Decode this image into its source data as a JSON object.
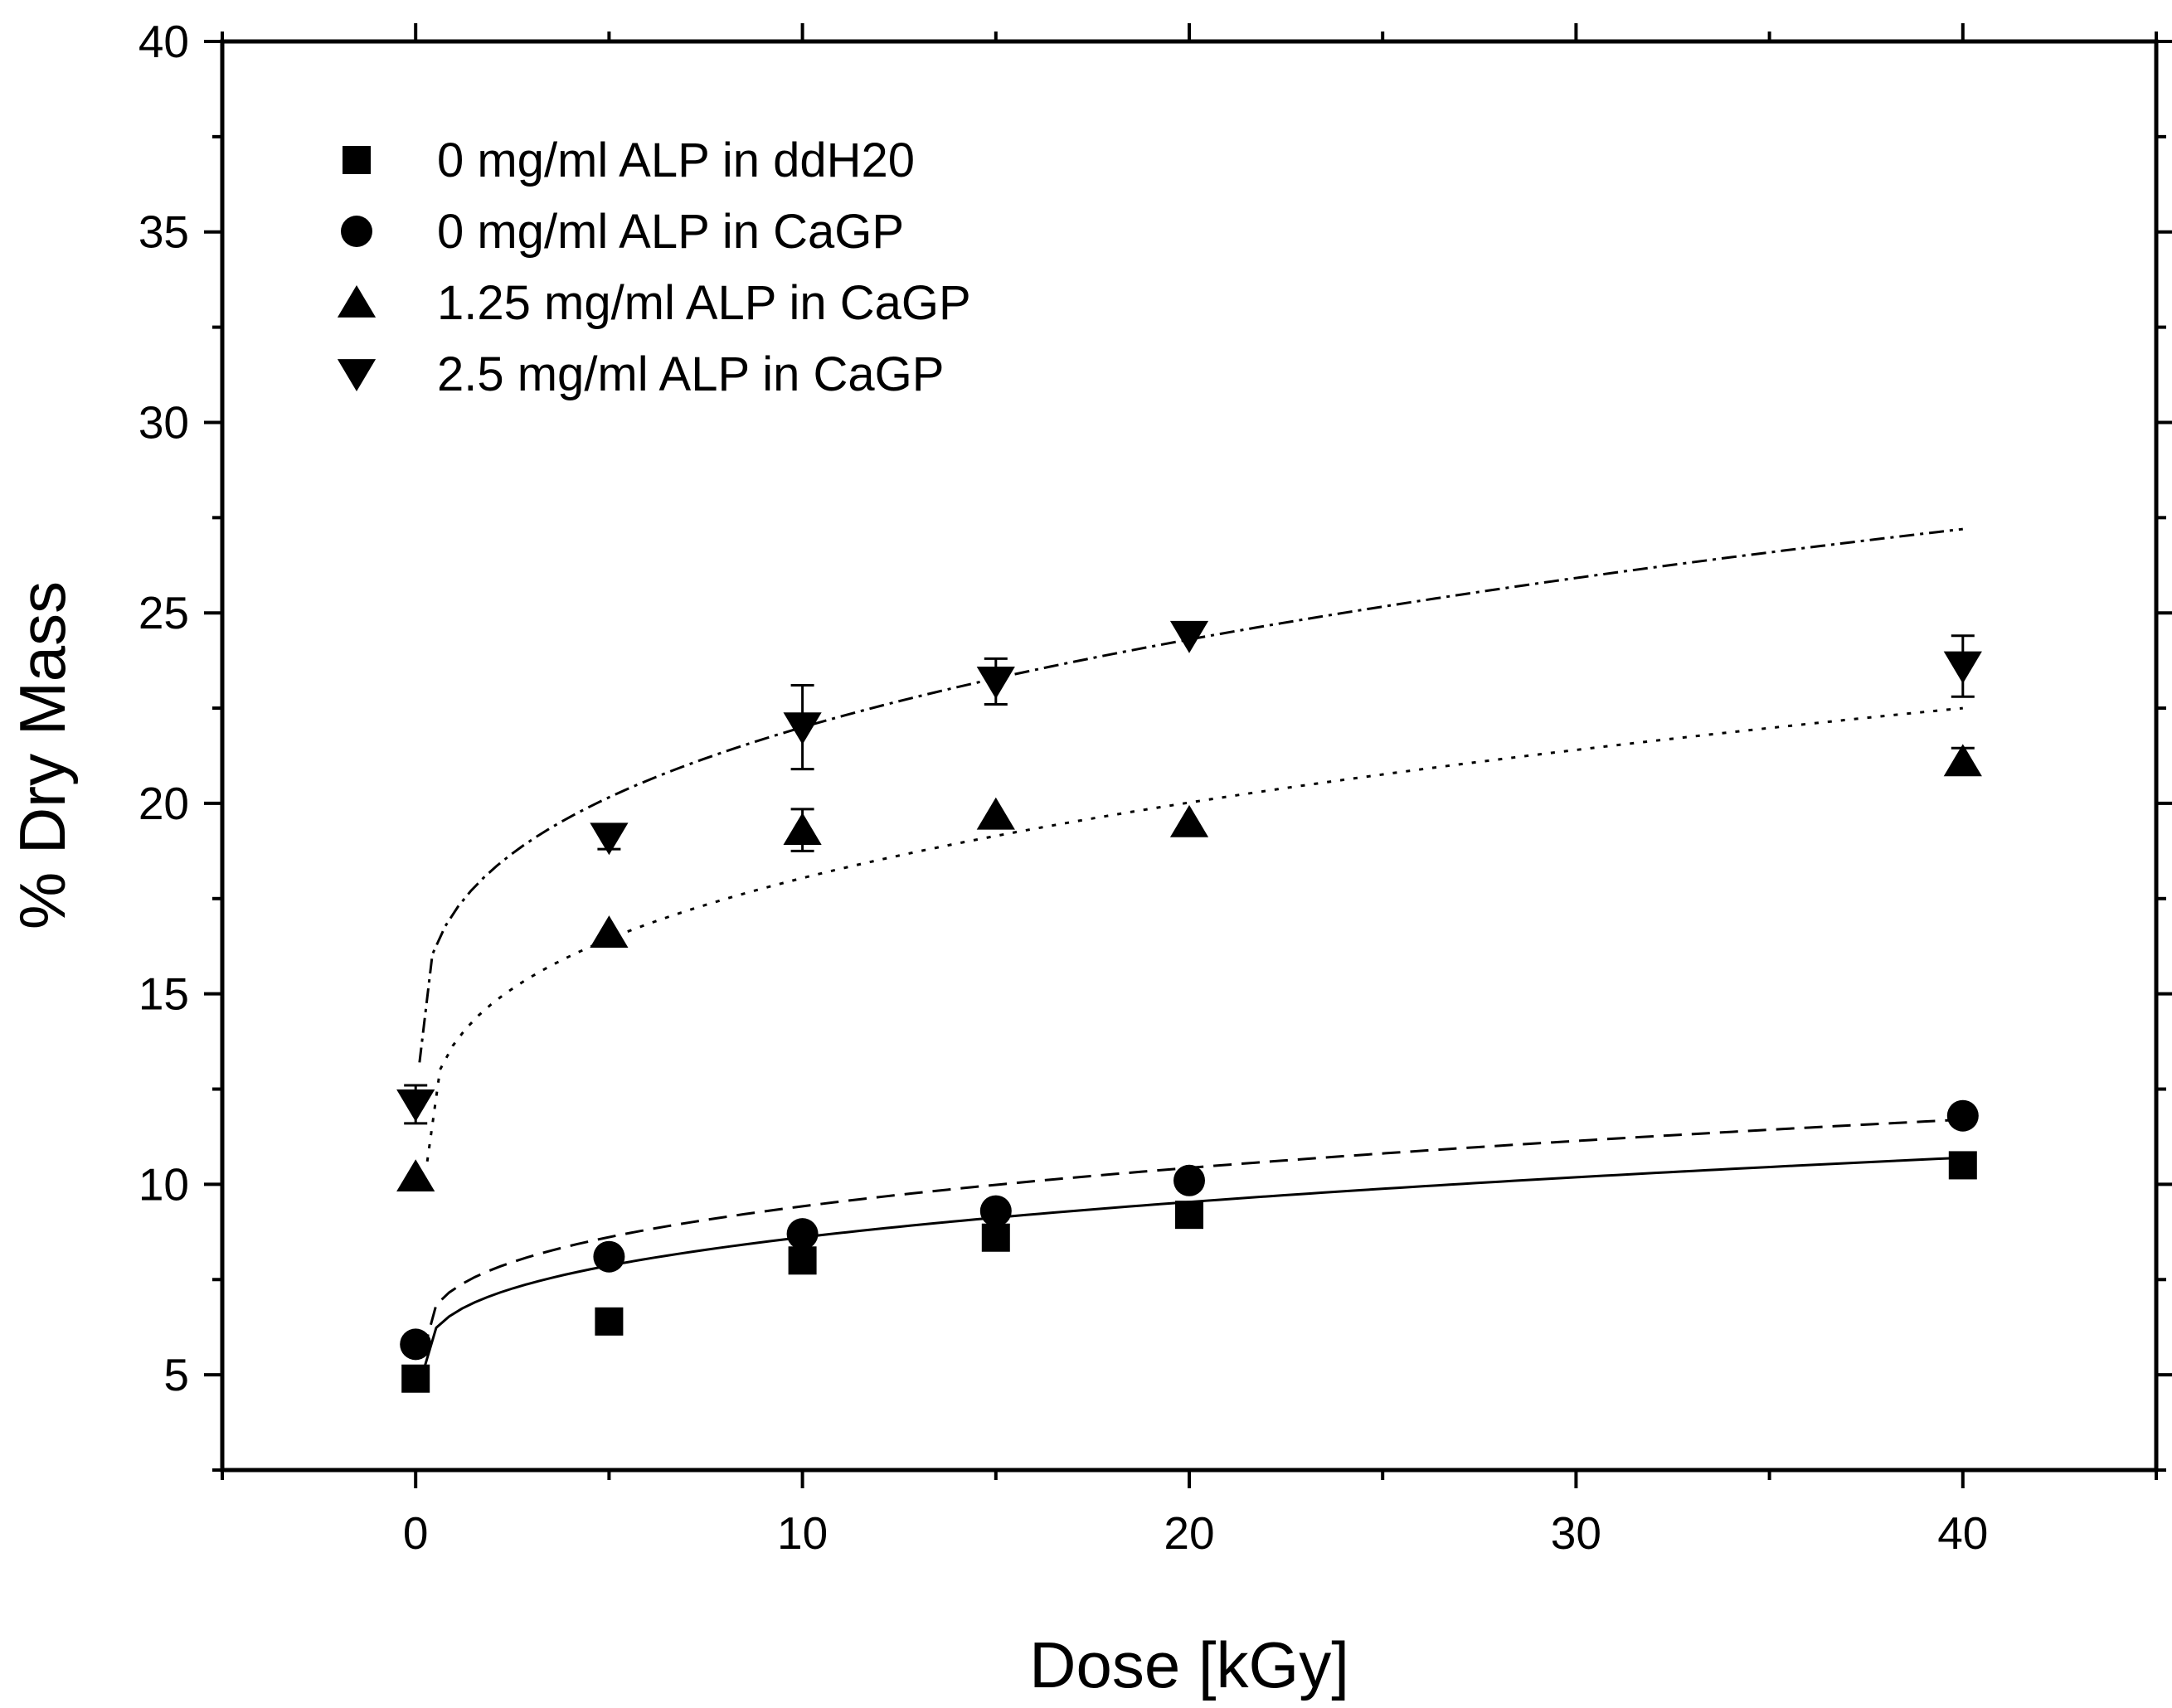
{
  "chart_data": {
    "type": "scatter",
    "title": "",
    "xlabel": "Dose [kGy]",
    "ylabel": "% Dry Mass",
    "xlim": [
      -5,
      45
    ],
    "ylim": [
      2.5,
      40
    ],
    "xticks": [
      0,
      10,
      20,
      30,
      40
    ],
    "yticks": [
      5,
      10,
      15,
      20,
      25,
      30,
      35,
      40
    ],
    "x_minor_step": 5,
    "y_minor_step": 2.5,
    "legend_position": "top-left",
    "grid": false,
    "series": [
      {
        "name": "0 mg/ml ALP in ddH20",
        "marker": "square",
        "x": [
          0,
          5,
          10,
          15,
          20,
          40
        ],
        "y": [
          4.9,
          6.4,
          8.0,
          8.6,
          9.2,
          10.5
        ],
        "err": [
          0,
          0,
          0,
          0,
          0,
          0
        ],
        "fit": {
          "style": "solid",
          "x_start": 0.2,
          "x_end": 40,
          "y_start": 5.1,
          "y_end": 10.7,
          "k": 3
        }
      },
      {
        "name": "0 mg/ml ALP in CaGP",
        "marker": "circle",
        "x": [
          0,
          5,
          10,
          15,
          20,
          40
        ],
        "y": [
          5.8,
          8.1,
          8.7,
          9.3,
          10.1,
          11.8
        ],
        "err": [
          0,
          0,
          0,
          0,
          0,
          0
        ],
        "fit": {
          "style": "dashed",
          "x_start": 0.2,
          "x_end": 40,
          "y_start": 5.6,
          "y_end": 11.7,
          "k": 3
        }
      },
      {
        "name": "1.25 mg/ml ALP in CaGP",
        "marker": "triangle-up",
        "x": [
          0,
          5,
          10,
          15,
          20,
          40
        ],
        "y": [
          10.2,
          16.6,
          19.3,
          19.7,
          19.5,
          21.1
        ],
        "err": [
          0,
          0,
          0.55,
          0,
          0,
          0.35
        ],
        "fit": {
          "style": "dotted",
          "x_start": 0.3,
          "x_end": 40,
          "y_start": 10.6,
          "y_end": 22.5,
          "k": 3
        }
      },
      {
        "name": "2.5 mg/ml ALP in CaGP",
        "marker": "triangle-down",
        "x": [
          0,
          5,
          10,
          15,
          20,
          40
        ],
        "y": [
          12.1,
          19.1,
          22.0,
          23.2,
          24.4,
          23.6
        ],
        "err": [
          0.5,
          0.3,
          1.1,
          0.6,
          0,
          0.8
        ],
        "fit": {
          "style": "dash-dot",
          "x_start": 0.1,
          "x_end": 40,
          "y_start": 13.2,
          "y_end": 27.2,
          "k": 3
        }
      }
    ]
  }
}
